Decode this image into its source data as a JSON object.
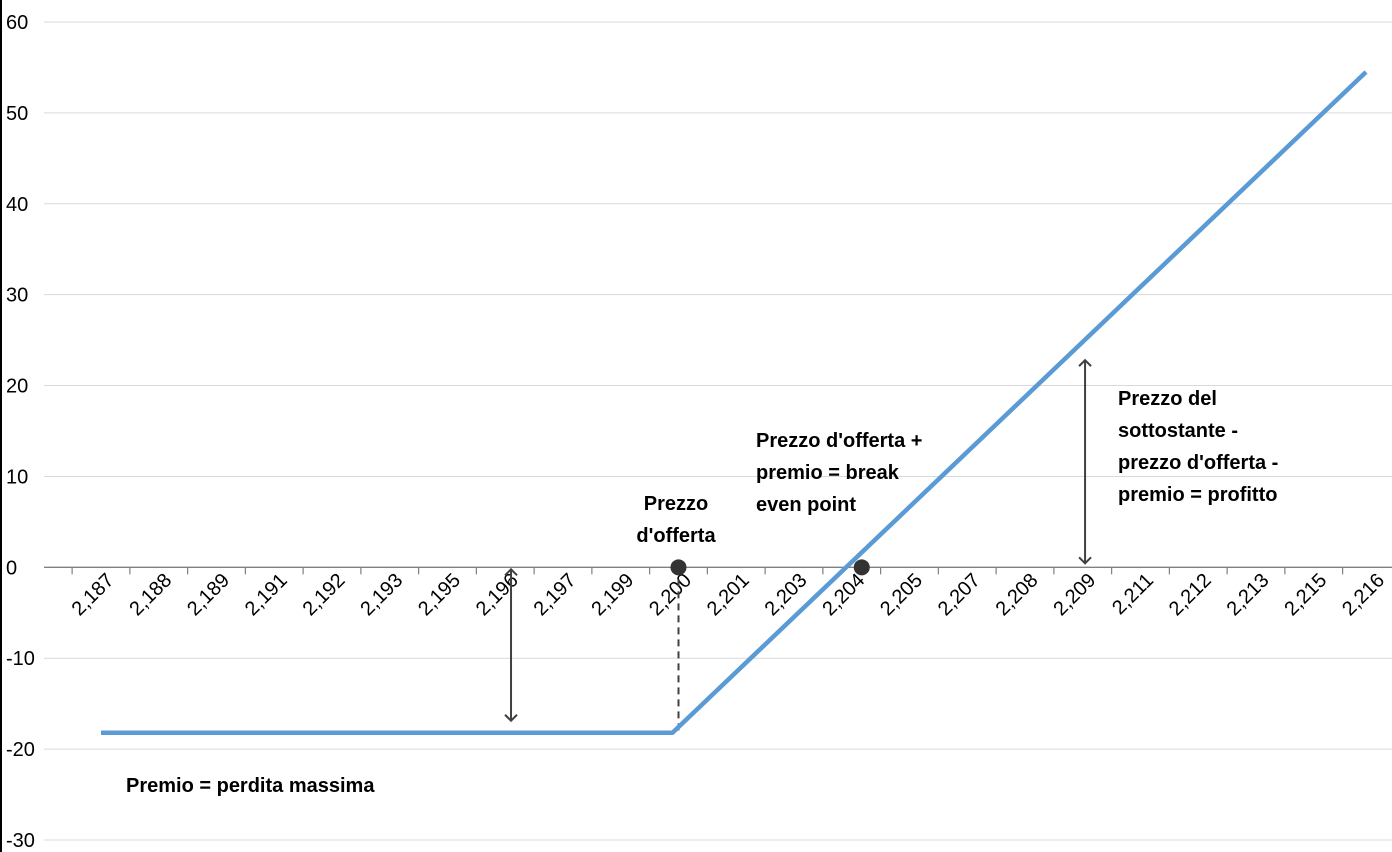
{
  "chart_data": {
    "type": "line",
    "title": "",
    "xlabel": "",
    "ylabel": "",
    "x_tick_labels": [
      "2,187",
      "2,188",
      "2,189",
      "2,191",
      "2,192",
      "2,193",
      "2,195",
      "2,196",
      "2,197",
      "2,199",
      "2,200",
      "2,201",
      "2,203",
      "2,204",
      "2,205",
      "2,207",
      "2,208",
      "2,209",
      "2,211",
      "2,212",
      "2,213",
      "2,215",
      "2,216"
    ],
    "y_ticks": [
      60,
      50,
      40,
      30,
      20,
      10,
      0,
      -10,
      -20,
      -30
    ],
    "y_tick_labels": [
      "60",
      "50",
      "40",
      "30",
      "20",
      "10",
      "0",
      "-10",
      "-20",
      "-30"
    ],
    "ylim": [
      -30,
      60
    ],
    "grid": true,
    "legend": "none",
    "series": [
      {
        "x": [
          "2,187",
          "2,200",
          "2,216"
        ],
        "values": [
          -18.2,
          -18.2,
          54.5
        ],
        "color": "#5b9bd5"
      }
    ],
    "markers": [
      {
        "x": "2,200",
        "y": 0
      },
      {
        "x": "2,204",
        "y": 0
      }
    ],
    "annotations": [
      {
        "lines": [
          "Prezzo",
          "d'offerta"
        ]
      },
      {
        "lines": [
          "Prezzo d'offerta +",
          "premio = break",
          "even point"
        ]
      },
      {
        "lines": [
          "Prezzo del",
          "sottostante -",
          "prezzo d'offerta -",
          "premio = profitto"
        ]
      },
      {
        "lines": [
          "Premio = perdita massima"
        ]
      }
    ],
    "colors": {
      "line": "#5b9bd5",
      "marker": "#333333",
      "grid": "#d9d9d9",
      "axis": "#808080",
      "arrow": "#404040"
    }
  }
}
